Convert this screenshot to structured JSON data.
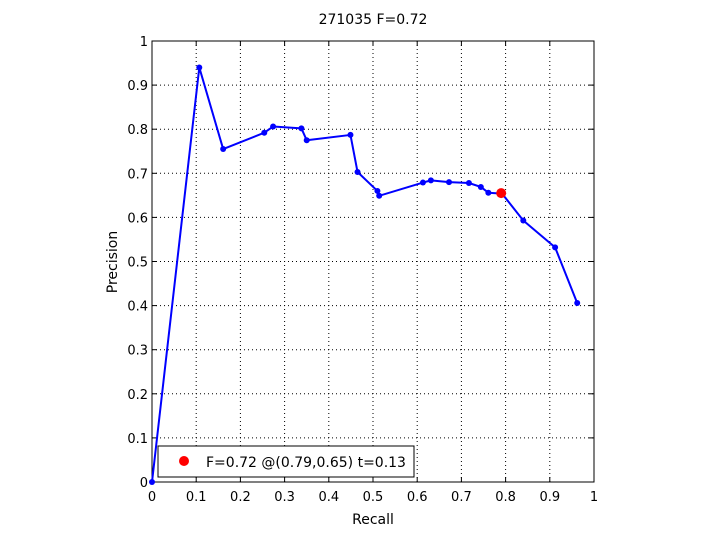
{
  "chart_data": {
    "type": "line",
    "title": "271035 F=0.72",
    "xlabel": "Recall",
    "ylabel": "Precision",
    "xlim": [
      0,
      1
    ],
    "ylim": [
      0,
      1
    ],
    "grid": true,
    "legend_placement": "bottom-left",
    "xticks": [
      0,
      0.1,
      0.2,
      0.3,
      0.4,
      0.5,
      0.6,
      0.7,
      0.8,
      0.9,
      1
    ],
    "yticks": [
      0,
      0.1,
      0.2,
      0.3,
      0.4,
      0.5,
      0.6,
      0.7,
      0.8,
      0.9,
      1
    ],
    "xtick_labels": [
      "0",
      "0.1",
      "0.2",
      "0.3",
      "0.4",
      "0.5",
      "0.6",
      "0.7",
      "0.8",
      "0.9",
      "1"
    ],
    "ytick_labels": [
      "0",
      "0.1",
      "0.2",
      "0.3",
      "0.4",
      "0.5",
      "0.6",
      "0.7",
      "0.8",
      "0.9",
      "1"
    ],
    "series": [
      {
        "color": "#0000ff",
        "points": [
          [
            0.0,
            0.0
          ],
          [
            0.107,
            0.94
          ],
          [
            0.161,
            0.755
          ],
          [
            0.254,
            0.792
          ],
          [
            0.274,
            0.806
          ],
          [
            0.338,
            0.802
          ],
          [
            0.35,
            0.775
          ],
          [
            0.449,
            0.787
          ],
          [
            0.465,
            0.703
          ],
          [
            0.51,
            0.66
          ],
          [
            0.514,
            0.649
          ],
          [
            0.613,
            0.679
          ],
          [
            0.631,
            0.684
          ],
          [
            0.672,
            0.68
          ],
          [
            0.717,
            0.678
          ],
          [
            0.744,
            0.669
          ],
          [
            0.761,
            0.656
          ],
          [
            0.792,
            0.654
          ],
          [
            0.84,
            0.593
          ],
          [
            0.912,
            0.532
          ],
          [
            0.962,
            0.406
          ]
        ]
      }
    ],
    "marker": {
      "color": "#ff0000",
      "x": 0.79,
      "y": 0.655
    },
    "legend": {
      "label": "F=0.72 @(0.79,0.65) t=0.13"
    }
  }
}
